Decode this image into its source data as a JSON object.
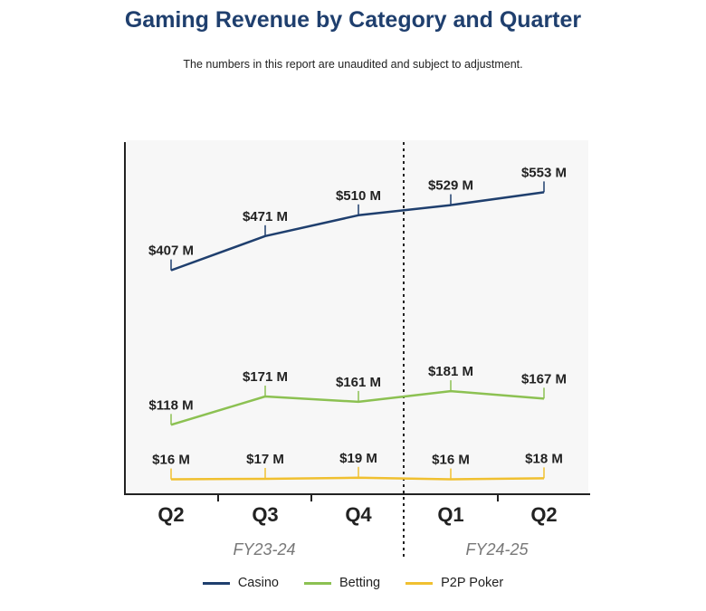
{
  "chart_data": {
    "type": "line",
    "title": "Gaming Revenue by Category and Quarter",
    "subtitle": "The numbers in this report are unaudited and subject to adjustment.",
    "categories": [
      "Q2",
      "Q3",
      "Q4",
      "Q1",
      "Q2"
    ],
    "fiscal_years": [
      {
        "label": "FY23-24",
        "quarters": [
          "Q2",
          "Q3",
          "Q4"
        ]
      },
      {
        "label": "FY24-25",
        "quarters": [
          "Q1",
          "Q2"
        ]
      }
    ],
    "unit": "M",
    "series": [
      {
        "name": "Casino",
        "color": "#1f3f6e",
        "values": [
          407,
          471,
          510,
          529,
          553
        ],
        "labels": [
          "$407 M",
          "$471 M",
          "$510 M",
          "$529 M",
          "$553 M"
        ]
      },
      {
        "name": "Betting",
        "color": "#8cc152",
        "values": [
          118,
          171,
          161,
          181,
          167
        ],
        "labels": [
          "$118 M",
          "$171 M",
          "$161 M",
          "$181 M",
          "$167 M"
        ]
      },
      {
        "name": "P2P Poker",
        "color": "#f0c030",
        "values": [
          16,
          17,
          19,
          16,
          18
        ],
        "labels": [
          "$16 M",
          "$17 M",
          "$19 M",
          "$16 M",
          "$18 M"
        ]
      }
    ],
    "ylim": [
      0,
      600
    ],
    "grid": false,
    "legend_position": "bottom"
  }
}
